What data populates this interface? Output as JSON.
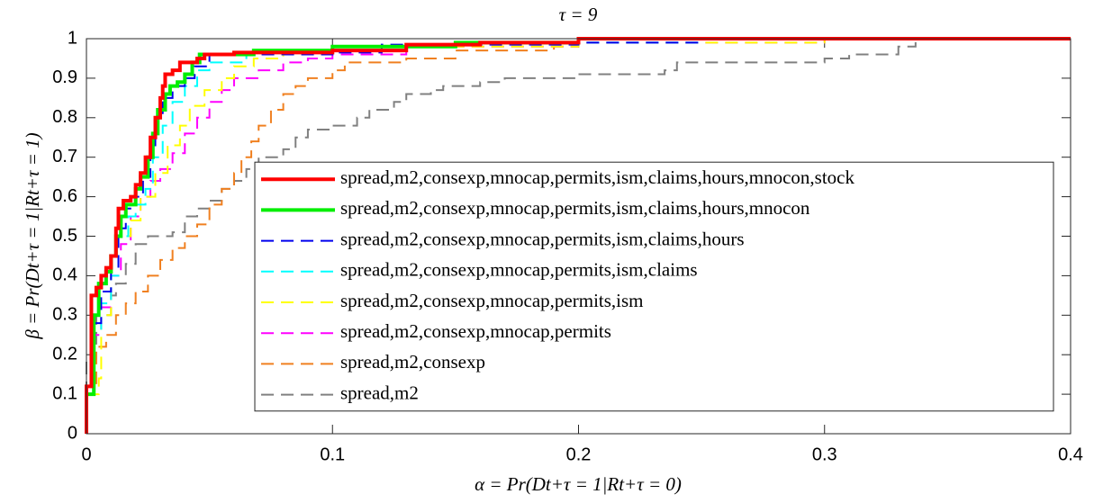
{
  "chart_data": {
    "type": "line",
    "step": true,
    "title": "τ = 9",
    "xlabel": "α = Pr(Dt+τ = 1|Rt+τ = 0)",
    "ylabel": "β = Pr(Dt+τ = 1|Rt+τ = 1)",
    "xlim": [
      0,
      0.4
    ],
    "xticks": [
      0,
      0.1,
      0.2,
      0.3,
      0.4
    ],
    "ylim": [
      0,
      1
    ],
    "yticks": [
      0,
      0.1,
      0.2,
      0.3,
      0.4,
      0.5,
      0.6,
      0.7,
      0.8,
      0.9,
      1
    ],
    "grid": false,
    "legend": "right",
    "series": [
      {
        "name": "spread,m2,consexp,mnocap,permits,ism,claims,hours,mnocon,stock",
        "color": "#ff0000",
        "style": "solid",
        "x": [
          0,
          0,
          0.002,
          0.004,
          0.006,
          0.008,
          0.01,
          0.012,
          0.013,
          0.015,
          0.018,
          0.02,
          0.022,
          0.024,
          0.026,
          0.028,
          0.03,
          0.031,
          0.032,
          0.035,
          0.038,
          0.045,
          0.048,
          0.06,
          0.1,
          0.13,
          0.16,
          0.2,
          0.4
        ],
        "values": [
          0,
          0.12,
          0.35,
          0.37,
          0.4,
          0.42,
          0.45,
          0.52,
          0.57,
          0.59,
          0.6,
          0.63,
          0.66,
          0.7,
          0.75,
          0.8,
          0.85,
          0.88,
          0.91,
          0.92,
          0.94,
          0.95,
          0.96,
          0.965,
          0.97,
          0.985,
          0.99,
          1,
          1
        ]
      },
      {
        "name": "spread,m2,consexp,mnocap,permits,ism,claims,hours,mnocon",
        "color": "#00ee00",
        "style": "solid",
        "x": [
          0,
          0,
          0.003,
          0.005,
          0.008,
          0.01,
          0.012,
          0.014,
          0.016,
          0.02,
          0.022,
          0.025,
          0.027,
          0.029,
          0.032,
          0.034,
          0.037,
          0.04,
          0.043,
          0.046,
          0.068,
          0.1,
          0.15,
          0.2,
          0.4
        ],
        "values": [
          0,
          0.1,
          0.3,
          0.38,
          0.41,
          0.45,
          0.5,
          0.55,
          0.58,
          0.62,
          0.65,
          0.7,
          0.76,
          0.82,
          0.86,
          0.88,
          0.89,
          0.91,
          0.94,
          0.96,
          0.97,
          0.98,
          0.99,
          1,
          1
        ]
      },
      {
        "name": "spread,m2,consexp,mnocap,permits,ism,claims,hours",
        "color": "#0000ee",
        "style": "dashed",
        "x": [
          0,
          0,
          0.003,
          0.006,
          0.01,
          0.013,
          0.016,
          0.02,
          0.023,
          0.026,
          0.028,
          0.031,
          0.035,
          0.04,
          0.044,
          0.05,
          0.1,
          0.12,
          0.2,
          0.25,
          0.4
        ],
        "values": [
          0,
          0.1,
          0.28,
          0.36,
          0.42,
          0.52,
          0.57,
          0.6,
          0.65,
          0.73,
          0.8,
          0.85,
          0.88,
          0.9,
          0.93,
          0.96,
          0.965,
          0.985,
          0.99,
          1,
          1
        ]
      },
      {
        "name": "spread,m2,consexp,mnocap,permits,ism,claims",
        "color": "#00ffff",
        "style": "dashed",
        "x": [
          0,
          0,
          0.003,
          0.006,
          0.01,
          0.013,
          0.017,
          0.02,
          0.024,
          0.027,
          0.031,
          0.035,
          0.04,
          0.045,
          0.05,
          0.065,
          0.1,
          0.15,
          0.25,
          0.4
        ],
        "values": [
          0,
          0.1,
          0.26,
          0.33,
          0.4,
          0.5,
          0.55,
          0.58,
          0.62,
          0.7,
          0.78,
          0.84,
          0.88,
          0.92,
          0.94,
          0.96,
          0.98,
          0.99,
          1,
          1
        ]
      },
      {
        "name": "spread,m2,consexp,mnocap,permits,ism",
        "color": "#ffff00",
        "style": "dashed",
        "x": [
          0,
          0,
          0.005,
          0.006,
          0.01,
          0.013,
          0.018,
          0.022,
          0.028,
          0.033,
          0.038,
          0.042,
          0.048,
          0.055,
          0.06,
          0.068,
          0.08,
          0.1,
          0.12,
          0.2,
          0.3,
          0.4
        ],
        "values": [
          0,
          0.1,
          0.14,
          0.3,
          0.45,
          0.5,
          0.54,
          0.6,
          0.66,
          0.73,
          0.78,
          0.83,
          0.87,
          0.9,
          0.93,
          0.95,
          0.96,
          0.97,
          0.98,
          0.99,
          1,
          1
        ]
      },
      {
        "name": "spread,m2,consexp,mnocap,permits",
        "color": "#ff00ff",
        "style": "dashed",
        "x": [
          0,
          0,
          0.003,
          0.006,
          0.01,
          0.014,
          0.018,
          0.022,
          0.026,
          0.03,
          0.035,
          0.04,
          0.045,
          0.05,
          0.055,
          0.06,
          0.07,
          0.08,
          0.09,
          0.1,
          0.13,
          0.2,
          0.3,
          0.4
        ],
        "values": [
          0,
          0.1,
          0.25,
          0.32,
          0.4,
          0.48,
          0.55,
          0.6,
          0.64,
          0.67,
          0.71,
          0.76,
          0.8,
          0.84,
          0.87,
          0.9,
          0.92,
          0.94,
          0.95,
          0.96,
          0.98,
          0.99,
          1,
          1
        ]
      },
      {
        "name": "spread,m2,consexp",
        "color": "#f08020",
        "style": "dashed",
        "x": [
          0,
          0,
          0.004,
          0.008,
          0.012,
          0.016,
          0.02,
          0.025,
          0.03,
          0.035,
          0.04,
          0.045,
          0.05,
          0.055,
          0.06,
          0.063,
          0.067,
          0.07,
          0.075,
          0.08,
          0.085,
          0.09,
          0.1,
          0.105,
          0.13,
          0.15,
          0.19,
          0.2,
          0.25,
          0.4
        ],
        "values": [
          0,
          0.12,
          0.22,
          0.25,
          0.3,
          0.33,
          0.36,
          0.4,
          0.44,
          0.47,
          0.5,
          0.53,
          0.58,
          0.62,
          0.66,
          0.7,
          0.74,
          0.78,
          0.82,
          0.86,
          0.88,
          0.9,
          0.92,
          0.94,
          0.95,
          0.97,
          0.98,
          0.99,
          1,
          1
        ]
      },
      {
        "name": "spread,m2",
        "color": "#808080",
        "style": "dashed",
        "x": [
          0,
          0,
          0.004,
          0.01,
          0.012,
          0.016,
          0.02,
          0.025,
          0.035,
          0.04,
          0.04,
          0.045,
          0.05,
          0.055,
          0.06,
          0.065,
          0.07,
          0.08,
          0.085,
          0.09,
          0.1,
          0.11,
          0.115,
          0.125,
          0.13,
          0.14,
          0.145,
          0.16,
          0.17,
          0.2,
          0.235,
          0.24,
          0.3,
          0.31,
          0.33,
          0.337,
          0.4
        ],
        "values": [
          0,
          0.19,
          0.3,
          0.35,
          0.38,
          0.43,
          0.48,
          0.5,
          0.51,
          0.53,
          0.55,
          0.57,
          0.59,
          0.62,
          0.64,
          0.67,
          0.7,
          0.72,
          0.75,
          0.77,
          0.78,
          0.8,
          0.82,
          0.84,
          0.86,
          0.87,
          0.88,
          0.89,
          0.9,
          0.91,
          0.92,
          0.94,
          0.95,
          0.96,
          0.98,
          1,
          1
        ]
      }
    ]
  }
}
